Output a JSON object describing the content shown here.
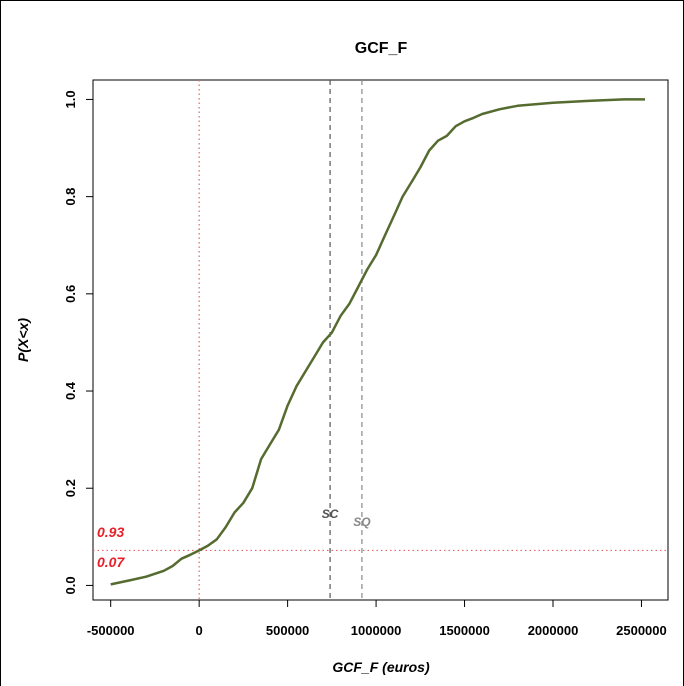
{
  "chart_data": {
    "type": "line",
    "title": "GCF_F",
    "xlabel": "GCF_F (euros)",
    "ylabel": "P(X<x)",
    "xlim": [
      -600000,
      2650000
    ],
    "ylim": [
      -0.03,
      1.04
    ],
    "x_ticks": [
      -500000,
      0,
      500000,
      1000000,
      1500000,
      2000000,
      2500000
    ],
    "x_tick_labels": [
      "-500000",
      "0",
      "500000",
      "1000000",
      "1500000",
      "2000000",
      "2500000"
    ],
    "y_ticks": [
      0.0,
      0.2,
      0.4,
      0.6,
      0.8,
      1.0
    ],
    "y_tick_labels": [
      "0.0",
      "0.2",
      "0.4",
      "0.6",
      "0.8",
      "1.0"
    ],
    "grid": false,
    "series": [
      {
        "color": "#556b2f",
        "x": [
          -500000,
          -400000,
          -300000,
          -200000,
          -150000,
          -100000,
          -50000,
          0,
          50000,
          100000,
          150000,
          200000,
          250000,
          300000,
          350000,
          400000,
          450000,
          500000,
          550000,
          600000,
          650000,
          700000,
          750000,
          800000,
          850000,
          900000,
          950000,
          1000000,
          1050000,
          1100000,
          1150000,
          1200000,
          1250000,
          1300000,
          1350000,
          1400000,
          1450000,
          1500000,
          1550000,
          1600000,
          1700000,
          1800000,
          2000000,
          2200000,
          2400000,
          2520000
        ],
        "y": [
          0.002,
          0.01,
          0.018,
          0.03,
          0.04,
          0.055,
          0.063,
          0.072,
          0.082,
          0.095,
          0.12,
          0.15,
          0.17,
          0.2,
          0.26,
          0.29,
          0.32,
          0.37,
          0.41,
          0.44,
          0.47,
          0.5,
          0.52,
          0.555,
          0.58,
          0.615,
          0.65,
          0.68,
          0.72,
          0.76,
          0.8,
          0.83,
          0.86,
          0.895,
          0.915,
          0.925,
          0.945,
          0.955,
          0.962,
          0.97,
          0.98,
          0.987,
          0.993,
          0.997,
          1.0,
          1.0
        ]
      }
    ],
    "reference_lines": [
      {
        "axis": "x",
        "value": 0,
        "color": "#e06666",
        "style": "dotted"
      },
      {
        "axis": "y",
        "value": 0.072,
        "color": "#e06666",
        "style": "dotted"
      },
      {
        "axis": "x",
        "value": 740000,
        "color": "#555555",
        "style": "dashed",
        "label": "SC"
      },
      {
        "axis": "x",
        "value": 920000,
        "color": "#888888",
        "style": "dashed",
        "label": "SQ"
      }
    ],
    "annotations": [
      {
        "text": "0.93",
        "color": "#e8202a"
      },
      {
        "text": "0.07",
        "color": "#e8202a"
      }
    ]
  }
}
